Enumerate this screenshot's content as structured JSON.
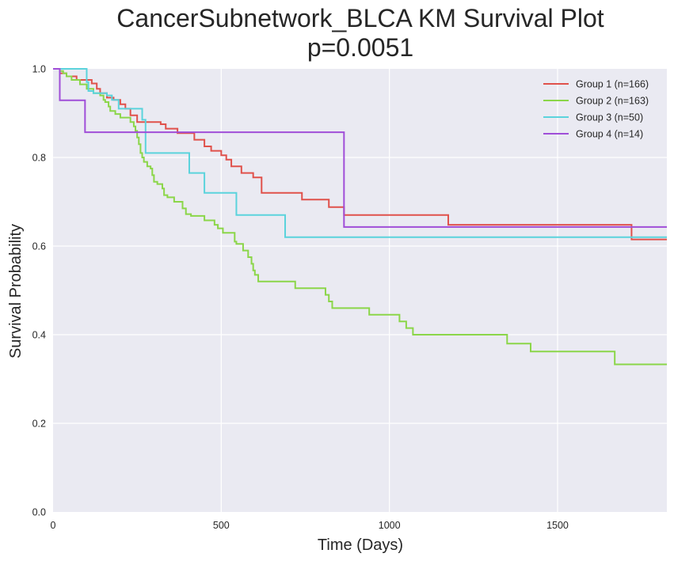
{
  "chart_data": {
    "type": "line",
    "step": true,
    "title": "CancerSubnetwork_BLCA KM Survival Plot",
    "subtitle": "p=0.0051",
    "xlabel": "Time (Days)",
    "ylabel": "Survival Probability",
    "xlim": [
      0,
      1825
    ],
    "ylim": [
      0,
      1.0
    ],
    "xticks": [
      0,
      500,
      1000,
      1500
    ],
    "yticks": [
      0.0,
      0.2,
      0.4,
      0.6,
      0.8,
      1.0
    ],
    "xtick_labels": [
      "0",
      "500",
      "1000",
      "1500"
    ],
    "ytick_labels": [
      "0.0",
      "0.2",
      "0.4",
      "0.6",
      "0.8",
      "1.0"
    ],
    "grid": true,
    "legend_position": "top-right",
    "series": [
      {
        "name": "Group 1 (n=166)",
        "color": "#e0514b",
        "x": [
          0,
          20,
          40,
          70,
          115,
          130,
          140,
          160,
          180,
          200,
          215,
          230,
          250,
          320,
          335,
          370,
          420,
          450,
          470,
          500,
          515,
          530,
          560,
          595,
          620,
          700,
          735,
          740,
          795,
          800,
          820,
          850,
          865,
          1170,
          1175,
          1720,
          1825
        ],
        "y": [
          1.0,
          0.99,
          0.983,
          0.975,
          0.967,
          0.955,
          0.945,
          0.935,
          0.93,
          0.92,
          0.91,
          0.895,
          0.88,
          0.875,
          0.865,
          0.855,
          0.84,
          0.825,
          0.815,
          0.805,
          0.795,
          0.78,
          0.765,
          0.755,
          0.72,
          0.72,
          0.72,
          0.705,
          0.705,
          0.705,
          0.688,
          0.688,
          0.67,
          0.67,
          0.648,
          0.615,
          0.615
        ]
      },
      {
        "name": "Group 2 (n=163)",
        "color": "#8bd649",
        "x": [
          0,
          20,
          30,
          40,
          55,
          80,
          100,
          120,
          140,
          150,
          155,
          165,
          170,
          185,
          200,
          230,
          240,
          245,
          250,
          255,
          260,
          265,
          270,
          280,
          290,
          295,
          300,
          310,
          325,
          330,
          340,
          360,
          385,
          395,
          410,
          450,
          480,
          490,
          505,
          540,
          545,
          565,
          580,
          590,
          595,
          600,
          610,
          720,
          810,
          820,
          830,
          840,
          940,
          980,
          1030,
          1050,
          1070,
          1080,
          1350,
          1420,
          1670,
          1825
        ],
        "y": [
          1.0,
          0.995,
          0.99,
          0.983,
          0.975,
          0.965,
          0.955,
          0.945,
          0.94,
          0.93,
          0.925,
          0.915,
          0.905,
          0.898,
          0.89,
          0.88,
          0.87,
          0.86,
          0.845,
          0.83,
          0.81,
          0.8,
          0.79,
          0.78,
          0.775,
          0.76,
          0.745,
          0.74,
          0.73,
          0.715,
          0.71,
          0.7,
          0.685,
          0.672,
          0.668,
          0.658,
          0.648,
          0.64,
          0.63,
          0.61,
          0.605,
          0.59,
          0.575,
          0.56,
          0.545,
          0.535,
          0.52,
          0.505,
          0.49,
          0.475,
          0.46,
          0.46,
          0.445,
          0.445,
          0.43,
          0.415,
          0.4,
          0.4,
          0.38,
          0.362,
          0.333,
          0.333
        ]
      },
      {
        "name": "Group 3 (n=50)",
        "color": "#5bd3dc",
        "x": [
          0,
          100,
          105,
          120,
          160,
          175,
          195,
          265,
          275,
          405,
          450,
          545,
          690,
          1825
        ],
        "y": [
          1.0,
          0.97,
          0.95,
          0.945,
          0.94,
          0.93,
          0.91,
          0.885,
          0.81,
          0.765,
          0.72,
          0.67,
          0.62,
          0.62
        ]
      },
      {
        "name": "Group 4 (n=14)",
        "color": "#a04ed8",
        "x": [
          0,
          20,
          95,
          865,
          1825
        ],
        "y": [
          1.0,
          0.929,
          0.857,
          0.643,
          0.643
        ]
      }
    ]
  }
}
